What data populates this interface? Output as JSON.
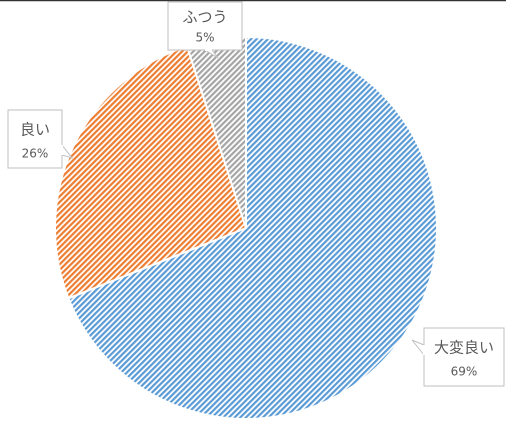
{
  "chart_data": {
    "type": "pie",
    "categories": [
      "大変良い",
      "良い",
      "ふつう"
    ],
    "values": [
      69,
      26,
      5
    ],
    "value_labels": [
      "69%",
      "26%",
      "5%"
    ],
    "colors": [
      "#9dc3e6",
      "#f4b183",
      "#d9d9d9"
    ],
    "stroke_colors": [
      "#5b9bd5",
      "#ed7d31",
      "#a5a5a5"
    ],
    "fill_pattern": "diagonal-hatch",
    "start_angle_deg": 0,
    "direction": "clockwise",
    "data_labels": "callouts"
  }
}
